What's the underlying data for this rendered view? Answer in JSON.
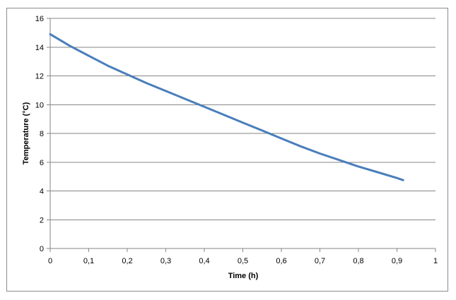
{
  "chart_data": {
    "type": "line",
    "title": "",
    "xlabel": "Time (h)",
    "ylabel": "Temperature (°C)",
    "xlim": [
      0,
      1
    ],
    "ylim": [
      0,
      16
    ],
    "xticks": [
      "0",
      "0,1",
      "0,2",
      "0,3",
      "0,4",
      "0,5",
      "0,6",
      "0,7",
      "0,8",
      "0,9",
      "1"
    ],
    "yticks": [
      "0",
      "2",
      "4",
      "6",
      "8",
      "10",
      "12",
      "14",
      "16"
    ],
    "grid": "horizontal",
    "legend": "none",
    "series": [
      {
        "color": "#4a7ebb",
        "x": [
          0,
          0.05,
          0.1,
          0.15,
          0.2,
          0.25,
          0.3,
          0.35,
          0.4,
          0.45,
          0.5,
          0.55,
          0.6,
          0.65,
          0.7,
          0.75,
          0.8,
          0.85,
          0.9,
          0.916
        ],
        "y": [
          14.9,
          14.1,
          13.4,
          12.7,
          12.1,
          11.5,
          10.95,
          10.4,
          9.85,
          9.3,
          8.75,
          8.2,
          7.65,
          7.1,
          6.6,
          6.15,
          5.7,
          5.3,
          4.9,
          4.75
        ]
      }
    ]
  }
}
